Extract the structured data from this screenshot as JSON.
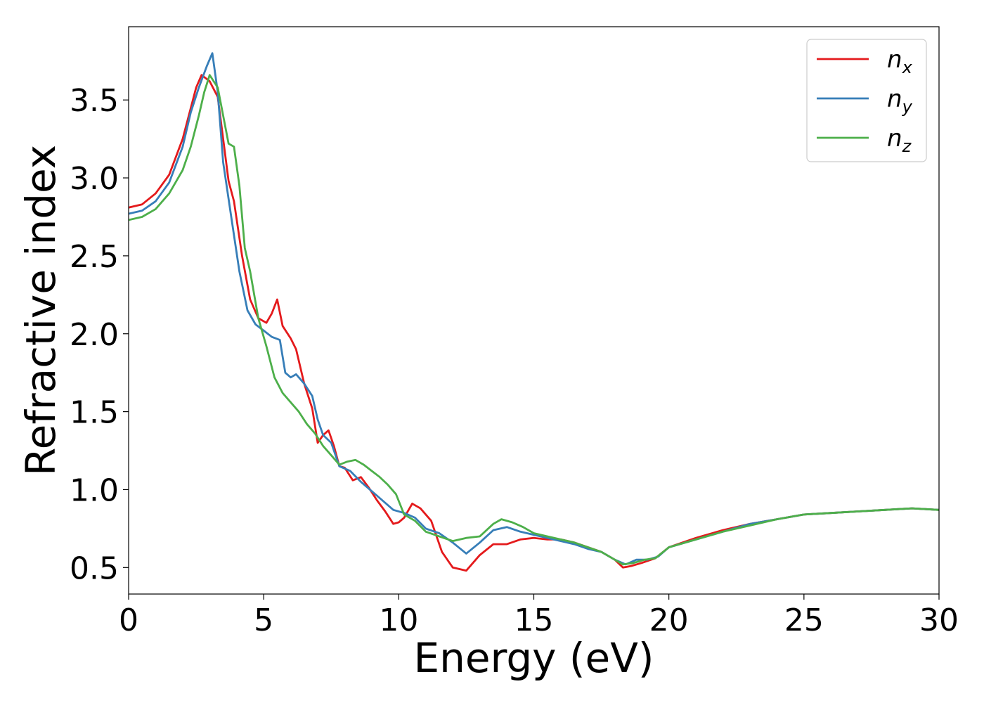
{
  "chart_data": {
    "type": "line",
    "title": "",
    "xlabel": "Energy (eV)",
    "ylabel": "Refractive index",
    "xlim": [
      0,
      30
    ],
    "ylim": [
      0.33,
      3.97
    ],
    "xticks": [
      0,
      5,
      10,
      15,
      20,
      25,
      30
    ],
    "yticks": [
      0.5,
      1.0,
      1.5,
      2.0,
      2.5,
      3.0,
      3.5
    ],
    "xtick_labels": [
      "0",
      "5",
      "10",
      "15",
      "20",
      "25",
      "30"
    ],
    "ytick_labels": [
      "0.5",
      "1.0",
      "1.5",
      "2.0",
      "2.5",
      "3.0",
      "3.5"
    ],
    "grid": false,
    "legend_position": "top-right",
    "series": [
      {
        "name": "n_x",
        "label_main": "n",
        "label_sub": "x",
        "color": "#e41a1c",
        "x": [
          0,
          0.5,
          1,
          1.5,
          2,
          2.5,
          2.7,
          3,
          3.3,
          3.5,
          3.7,
          3.9,
          4.2,
          4.5,
          4.8,
          5.1,
          5.3,
          5.5,
          5.7,
          6.0,
          6.2,
          6.5,
          6.8,
          7.0,
          7.2,
          7.4,
          7.6,
          7.8,
          8.0,
          8.3,
          8.6,
          8.9,
          9.2,
          9.5,
          9.8,
          10.0,
          10.2,
          10.5,
          10.8,
          11.2,
          11.6,
          12.0,
          12.5,
          13.0,
          13.5,
          14.0,
          14.5,
          15.0,
          15.5,
          16.0,
          16.5,
          17.0,
          17.5,
          18.0,
          18.3,
          18.6,
          19.0,
          19.5,
          20.0,
          21.0,
          22.0,
          23.0,
          24.0,
          25.0,
          26.0,
          27.0,
          28.0,
          29.0,
          30.0
        ],
        "y": [
          2.81,
          2.83,
          2.9,
          3.02,
          3.25,
          3.58,
          3.66,
          3.62,
          3.52,
          3.25,
          2.98,
          2.85,
          2.5,
          2.22,
          2.1,
          2.07,
          2.13,
          2.22,
          2.05,
          1.97,
          1.9,
          1.68,
          1.52,
          1.3,
          1.35,
          1.38,
          1.28,
          1.15,
          1.14,
          1.06,
          1.08,
          1.01,
          0.93,
          0.86,
          0.78,
          0.79,
          0.82,
          0.91,
          0.88,
          0.8,
          0.6,
          0.5,
          0.48,
          0.58,
          0.65,
          0.65,
          0.68,
          0.69,
          0.68,
          0.68,
          0.66,
          0.63,
          0.6,
          0.55,
          0.5,
          0.51,
          0.53,
          0.56,
          0.63,
          0.69,
          0.74,
          0.78,
          0.81,
          0.84,
          0.85,
          0.86,
          0.87,
          0.88,
          0.87
        ]
      },
      {
        "name": "n_y",
        "label_main": "n",
        "label_sub": "y",
        "color": "#377eb8",
        "x": [
          0,
          0.5,
          1,
          1.5,
          2,
          2.3,
          2.6,
          2.9,
          3.1,
          3.3,
          3.5,
          3.8,
          4.1,
          4.4,
          4.7,
          5.0,
          5.3,
          5.6,
          5.8,
          6.0,
          6.2,
          6.5,
          6.8,
          7.0,
          7.2,
          7.5,
          7.8,
          8.2,
          8.6,
          9.0,
          9.4,
          9.8,
          10.2,
          10.6,
          11.0,
          11.5,
          12.0,
          12.5,
          13.0,
          13.5,
          14.0,
          14.5,
          15.0,
          15.5,
          16.0,
          16.5,
          17.0,
          17.5,
          18.0,
          18.4,
          18.8,
          19.2,
          19.6,
          20.0,
          21.0,
          22.0,
          23.0,
          24.0,
          25.0,
          26.0,
          27.0,
          28.0,
          29.0,
          30.0
        ],
        "y": [
          2.77,
          2.79,
          2.85,
          2.97,
          3.2,
          3.42,
          3.58,
          3.72,
          3.8,
          3.55,
          3.1,
          2.75,
          2.4,
          2.15,
          2.06,
          2.02,
          1.98,
          1.96,
          1.75,
          1.72,
          1.74,
          1.68,
          1.6,
          1.45,
          1.35,
          1.3,
          1.15,
          1.12,
          1.05,
          0.99,
          0.93,
          0.87,
          0.85,
          0.82,
          0.75,
          0.72,
          0.66,
          0.59,
          0.66,
          0.74,
          0.76,
          0.73,
          0.71,
          0.69,
          0.67,
          0.65,
          0.62,
          0.6,
          0.55,
          0.52,
          0.55,
          0.55,
          0.57,
          0.63,
          0.68,
          0.73,
          0.78,
          0.81,
          0.84,
          0.85,
          0.86,
          0.87,
          0.88,
          0.87
        ]
      },
      {
        "name": "n_z",
        "label_main": "n",
        "label_sub": "z",
        "color": "#4daf4a",
        "x": [
          0,
          0.5,
          1,
          1.5,
          2,
          2.3,
          2.6,
          2.8,
          3.0,
          3.3,
          3.5,
          3.7,
          3.9,
          4.1,
          4.3,
          4.5,
          4.8,
          5.1,
          5.4,
          5.7,
          6.0,
          6.3,
          6.6,
          6.9,
          7.2,
          7.5,
          7.8,
          8.1,
          8.4,
          8.7,
          9.0,
          9.3,
          9.6,
          9.9,
          10.2,
          10.6,
          11.0,
          11.5,
          12.0,
          12.5,
          13.0,
          13.5,
          13.8,
          14.2,
          14.6,
          15.0,
          15.5,
          16.0,
          16.5,
          17.0,
          17.5,
          18.0,
          18.3,
          18.7,
          19.1,
          19.5,
          20.0,
          21.0,
          22.0,
          23.0,
          24.0,
          25.0,
          26.0,
          27.0,
          28.0,
          29.0,
          30.0
        ],
        "y": [
          2.73,
          2.75,
          2.8,
          2.9,
          3.05,
          3.2,
          3.4,
          3.55,
          3.66,
          3.58,
          3.4,
          3.22,
          3.2,
          2.95,
          2.55,
          2.4,
          2.1,
          1.92,
          1.72,
          1.62,
          1.56,
          1.5,
          1.42,
          1.36,
          1.28,
          1.22,
          1.16,
          1.18,
          1.19,
          1.16,
          1.12,
          1.08,
          1.03,
          0.97,
          0.84,
          0.8,
          0.73,
          0.7,
          0.67,
          0.69,
          0.7,
          0.78,
          0.81,
          0.79,
          0.76,
          0.72,
          0.7,
          0.68,
          0.66,
          0.63,
          0.6,
          0.55,
          0.52,
          0.53,
          0.55,
          0.56,
          0.63,
          0.68,
          0.73,
          0.77,
          0.81,
          0.84,
          0.85,
          0.86,
          0.87,
          0.88,
          0.87
        ]
      }
    ]
  }
}
